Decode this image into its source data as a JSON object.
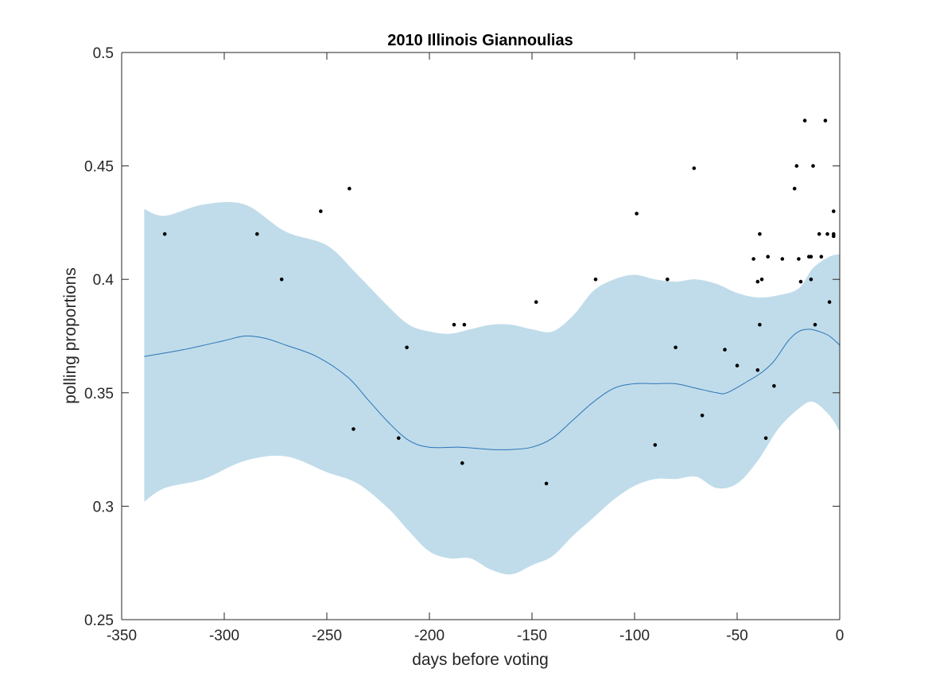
{
  "chart_data": {
    "type": "scatter",
    "title": "2010 Illinois Giannoulias",
    "xlabel": "days before voting",
    "ylabel": "polling proportions",
    "xlim": [
      -350,
      0
    ],
    "ylim": [
      0.25,
      0.5
    ],
    "xticks": [
      -350,
      -300,
      -250,
      -200,
      -150,
      -100,
      -50,
      0
    ],
    "xtick_labels": [
      "-350",
      "-300",
      "-250",
      "-200",
      "-150",
      "-100",
      "-50",
      "0"
    ],
    "yticks": [
      0.25,
      0.3,
      0.35,
      0.4,
      0.45,
      0.5
    ],
    "ytick_labels": [
      "0.25",
      "0.3",
      "0.35",
      "0.4",
      "0.45",
      "0.5"
    ],
    "grid": false,
    "legend": "none",
    "colors": {
      "band": "#c0dcea",
      "trend": "#2a74b8",
      "points": "#000000",
      "axes": "#262626"
    },
    "band": {
      "x": [
        -339,
        -329,
        -310,
        -290,
        -270,
        -250,
        -235,
        -220,
        -210,
        -200,
        -190,
        -180,
        -170,
        -160,
        -150,
        -140,
        -130,
        -120,
        -110,
        -100,
        -90,
        -80,
        -70,
        -60,
        -50,
        -40,
        -30,
        -20,
        -13,
        -5,
        0
      ],
      "upper": [
        0.431,
        0.428,
        0.433,
        0.433,
        0.421,
        0.415,
        0.402,
        0.388,
        0.38,
        0.377,
        0.376,
        0.378,
        0.38,
        0.38,
        0.378,
        0.377,
        0.384,
        0.395,
        0.4,
        0.402,
        0.4,
        0.399,
        0.4,
        0.398,
        0.394,
        0.392,
        0.393,
        0.396,
        0.405,
        0.41,
        0.411
      ],
      "lower": [
        0.302,
        0.308,
        0.312,
        0.32,
        0.322,
        0.315,
        0.31,
        0.299,
        0.289,
        0.28,
        0.277,
        0.277,
        0.272,
        0.27,
        0.274,
        0.278,
        0.287,
        0.295,
        0.303,
        0.309,
        0.312,
        0.312,
        0.313,
        0.308,
        0.31,
        0.32,
        0.334,
        0.343,
        0.346,
        0.34,
        0.333
      ]
    },
    "trend": {
      "x": [
        -339,
        -320,
        -300,
        -290,
        -280,
        -270,
        -255,
        -240,
        -230,
        -220,
        -210,
        -200,
        -185,
        -170,
        -160,
        -150,
        -140,
        -130,
        -120,
        -110,
        -100,
        -90,
        -80,
        -70,
        -60,
        -55,
        -45,
        -38,
        -32,
        -25,
        -20,
        -15,
        -10,
        -5,
        0
      ],
      "y": [
        0.366,
        0.369,
        0.373,
        0.375,
        0.374,
        0.371,
        0.366,
        0.357,
        0.347,
        0.337,
        0.329,
        0.326,
        0.326,
        0.325,
        0.325,
        0.326,
        0.33,
        0.338,
        0.346,
        0.352,
        0.354,
        0.354,
        0.354,
        0.352,
        0.35,
        0.35,
        0.355,
        0.359,
        0.364,
        0.373,
        0.377,
        0.378,
        0.377,
        0.375,
        0.371
      ]
    },
    "points": [
      {
        "x": -329,
        "y": 0.42
      },
      {
        "x": -284,
        "y": 0.42
      },
      {
        "x": -272,
        "y": 0.4
      },
      {
        "x": -253,
        "y": 0.43
      },
      {
        "x": -239,
        "y": 0.44
      },
      {
        "x": -237,
        "y": 0.334
      },
      {
        "x": -215,
        "y": 0.33
      },
      {
        "x": -211,
        "y": 0.37
      },
      {
        "x": -188,
        "y": 0.38
      },
      {
        "x": -183,
        "y": 0.38
      },
      {
        "x": -184,
        "y": 0.319
      },
      {
        "x": -148,
        "y": 0.39
      },
      {
        "x": -143,
        "y": 0.31
      },
      {
        "x": -119,
        "y": 0.4
      },
      {
        "x": -99,
        "y": 0.429
      },
      {
        "x": -90,
        "y": 0.327
      },
      {
        "x": -84,
        "y": 0.4
      },
      {
        "x": -80,
        "y": 0.37
      },
      {
        "x": -71,
        "y": 0.449
      },
      {
        "x": -67,
        "y": 0.34
      },
      {
        "x": -56,
        "y": 0.369
      },
      {
        "x": -50,
        "y": 0.362
      },
      {
        "x": -42,
        "y": 0.409
      },
      {
        "x": -40,
        "y": 0.399
      },
      {
        "x": -40,
        "y": 0.36
      },
      {
        "x": -39,
        "y": 0.42
      },
      {
        "x": -39,
        "y": 0.38
      },
      {
        "x": -38,
        "y": 0.4
      },
      {
        "x": -36,
        "y": 0.33
      },
      {
        "x": -35,
        "y": 0.41
      },
      {
        "x": -32,
        "y": 0.353
      },
      {
        "x": -28,
        "y": 0.409
      },
      {
        "x": -22,
        "y": 0.44
      },
      {
        "x": -21,
        "y": 0.45
      },
      {
        "x": -20,
        "y": 0.409
      },
      {
        "x": -19,
        "y": 0.399
      },
      {
        "x": -17,
        "y": 0.47
      },
      {
        "x": -15,
        "y": 0.41
      },
      {
        "x": -14,
        "y": 0.4
      },
      {
        "x": -14,
        "y": 0.41
      },
      {
        "x": -13,
        "y": 0.45
      },
      {
        "x": -12,
        "y": 0.38
      },
      {
        "x": -10,
        "y": 0.42
      },
      {
        "x": -9,
        "y": 0.41
      },
      {
        "x": -7,
        "y": 0.47
      },
      {
        "x": -6,
        "y": 0.42
      },
      {
        "x": -5,
        "y": 0.39
      },
      {
        "x": -3,
        "y": 0.43
      },
      {
        "x": -3,
        "y": 0.42
      },
      {
        "x": -3,
        "y": 0.419
      }
    ]
  }
}
